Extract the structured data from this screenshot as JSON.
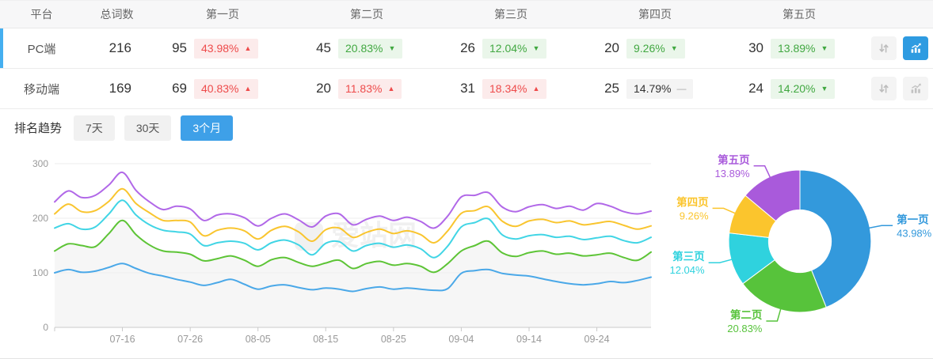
{
  "table": {
    "headers": {
      "platform": "平台",
      "total": "总词数",
      "pages": [
        "第一页",
        "第二页",
        "第三页",
        "第四页",
        "第五页"
      ]
    },
    "rows": [
      {
        "platform": "PC端",
        "selected": true,
        "total": "216",
        "pages": [
          {
            "count": "95",
            "pct": "43.98%",
            "trend": "up"
          },
          {
            "count": "45",
            "pct": "20.83%",
            "trend": "down"
          },
          {
            "count": "26",
            "pct": "12.04%",
            "trend": "down"
          },
          {
            "count": "20",
            "pct": "9.26%",
            "trend": "down"
          },
          {
            "count": "30",
            "pct": "13.89%",
            "trend": "down"
          }
        ],
        "chart_active": true
      },
      {
        "platform": "移动端",
        "selected": false,
        "total": "169",
        "pages": [
          {
            "count": "69",
            "pct": "40.83%",
            "trend": "up"
          },
          {
            "count": "20",
            "pct": "11.83%",
            "trend": "up"
          },
          {
            "count": "31",
            "pct": "18.34%",
            "trend": "up"
          },
          {
            "count": "25",
            "pct": "14.79%",
            "trend": "flat"
          },
          {
            "count": "24",
            "pct": "14.20%",
            "trend": "down"
          }
        ],
        "chart_active": false
      }
    ]
  },
  "trend": {
    "label": "排名趋势",
    "tabs": [
      {
        "name": "tab-7-days",
        "label": "7天",
        "active": false
      },
      {
        "name": "tab-30-days",
        "label": "30天",
        "active": false
      },
      {
        "name": "tab-3-months",
        "label": "3个月",
        "active": true
      }
    ]
  },
  "watermark": "爱站网",
  "icons": {
    "up_arrow": "▲",
    "down_arrow": "▼",
    "flat_dash": "—",
    "sort": "sort-arrows-icon",
    "chart": "trend-chart-icon"
  },
  "colors": {
    "accent_blue": "#3ea0e8",
    "active_button_blue": "#2e9be1",
    "selected_row_bar": "#45aff0",
    "badge_up_text": "#ee4b4b",
    "badge_up_bg": "#fcebeb",
    "badge_down_text": "#41a841",
    "badge_down_bg": "#eaf6ea",
    "badge_flat_bg": "#f4f4f4",
    "grid_line": "#ededed",
    "axis_line": "#c9c9c9",
    "tick_text": "#999999"
  },
  "chart_data": [
    {
      "type": "line",
      "title": "排名趋势 (3个月)",
      "x_ticks": [
        "07-16",
        "07-26",
        "08-05",
        "08-15",
        "08-25",
        "09-04",
        "09-14",
        "09-24"
      ],
      "x_tick_positions": [
        0.1136,
        0.2273,
        0.3409,
        0.4545,
        0.5682,
        0.6818,
        0.7955,
        0.9091
      ],
      "ylim": [
        0,
        300
      ],
      "y_ticks": [
        0,
        100,
        200,
        300
      ],
      "grid": true,
      "legend_position": "none",
      "series": [
        {
          "name": "第一页",
          "color": "#4aa8e8",
          "values": [
            100,
            106,
            101,
            103,
            110,
            117,
            108,
            99,
            94,
            88,
            83,
            77,
            82,
            88,
            79,
            70,
            76,
            78,
            73,
            69,
            72,
            70,
            66,
            71,
            74,
            70,
            72,
            70,
            68,
            71,
            99,
            104,
            106,
            99,
            96,
            94,
            89,
            84,
            80,
            78,
            80,
            84,
            82,
            86,
            92
          ]
        },
        {
          "name": "第二页",
          "color": "#5dc436",
          "area_fill": "rgba(125,125,125,0.07)",
          "values": [
            140,
            153,
            150,
            148,
            172,
            196,
            170,
            151,
            140,
            138,
            134,
            122,
            126,
            131,
            123,
            112,
            124,
            128,
            119,
            112,
            118,
            123,
            108,
            117,
            121,
            114,
            117,
            112,
            101,
            117,
            140,
            150,
            158,
            137,
            130,
            137,
            140,
            134,
            136,
            131,
            133,
            136,
            128,
            123,
            138
          ]
        },
        {
          "name": "第三页",
          "color": "#41d5e5",
          "values": [
            182,
            190,
            180,
            184,
            208,
            233,
            206,
            188,
            178,
            175,
            171,
            150,
            155,
            158,
            154,
            142,
            155,
            160,
            151,
            133,
            154,
            157,
            140,
            150,
            154,
            147,
            151,
            144,
            128,
            149,
            184,
            192,
            199,
            170,
            162,
            168,
            170,
            165,
            167,
            161,
            164,
            167,
            159,
            155,
            165
          ]
        },
        {
          "name": "第四页",
          "color": "#f9c52f",
          "values": [
            208,
            226,
            212,
            214,
            231,
            254,
            227,
            210,
            196,
            196,
            193,
            168,
            178,
            182,
            177,
            162,
            178,
            185,
            175,
            158,
            179,
            182,
            165,
            174,
            180,
            172,
            177,
            170,
            155,
            177,
            209,
            214,
            221,
            195,
            185,
            195,
            198,
            192,
            195,
            188,
            191,
            194,
            187,
            180,
            186
          ]
        },
        {
          "name": "第五页",
          "color": "#b168e8",
          "values": [
            230,
            250,
            238,
            242,
            261,
            284,
            251,
            230,
            216,
            222,
            217,
            196,
            206,
            208,
            201,
            186,
            200,
            208,
            197,
            184,
            204,
            208,
            188,
            198,
            204,
            196,
            202,
            194,
            182,
            204,
            239,
            242,
            247,
            221,
            212,
            221,
            225,
            218,
            222,
            215,
            227,
            222,
            212,
            208,
            213
          ]
        }
      ]
    },
    {
      "type": "pie",
      "title": "页面分布",
      "donut": true,
      "inner_radius_ratio": 0.44,
      "slices": [
        {
          "label": "第一页",
          "pct": 43.98,
          "color": "#3399dc"
        },
        {
          "label": "第二页",
          "pct": 20.83,
          "color": "#57c33b"
        },
        {
          "label": "第三页",
          "pct": 12.04,
          "color": "#2fd2de"
        },
        {
          "label": "第四页",
          "pct": 9.26,
          "color": "#fbc52d"
        },
        {
          "label": "第五页",
          "pct": 13.89,
          "color": "#a95adb"
        }
      ]
    }
  ]
}
